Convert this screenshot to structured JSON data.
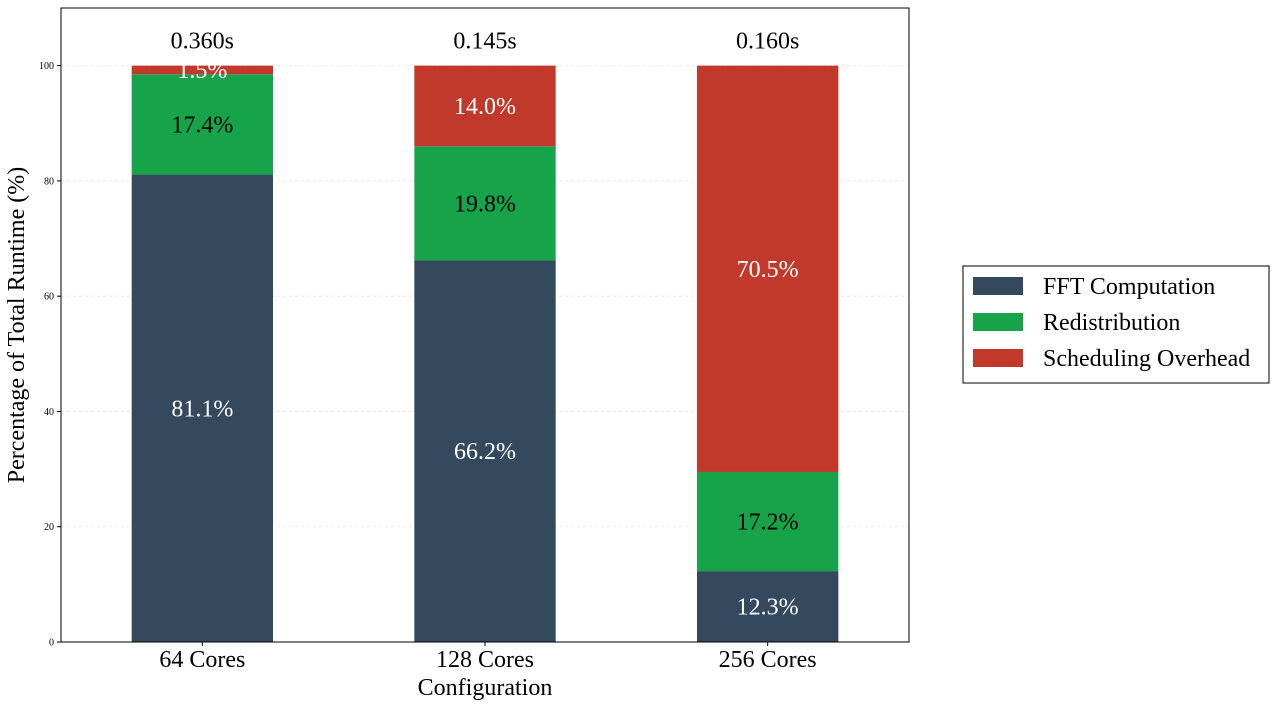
{
  "chart_data": {
    "type": "bar",
    "stacked": true,
    "categories": [
      "64 Cores",
      "128 Cores",
      "256 Cores"
    ],
    "series": [
      {
        "name": "FFT Computation",
        "values": [
          81.1,
          66.2,
          12.3
        ],
        "color": "#34495e",
        "label_color": "#ffffff"
      },
      {
        "name": "Redistribution",
        "values": [
          17.4,
          19.8,
          17.2
        ],
        "color": "#16a34a",
        "label_color": "#000000"
      },
      {
        "name": "Scheduling Overhead",
        "values": [
          1.5,
          14.0,
          70.5
        ],
        "color": "#c0392b",
        "label_color": "#ffffff"
      }
    ],
    "data_labels": [
      [
        "81.1%",
        "17.4%",
        "1.5%"
      ],
      [
        "66.2%",
        "19.8%",
        "14.0%"
      ],
      [
        "12.3%",
        "17.2%",
        "70.5%"
      ]
    ],
    "totals": [
      "0.360s",
      "0.145s",
      "0.160s"
    ],
    "xlabel": "Configuration",
    "ylabel": "Percentage of Total Runtime (%)",
    "ylim": [
      0,
      110
    ],
    "yticks": [
      0,
      20,
      40,
      60,
      80,
      100
    ],
    "grid": true,
    "legend": {
      "placement": "right"
    }
  }
}
